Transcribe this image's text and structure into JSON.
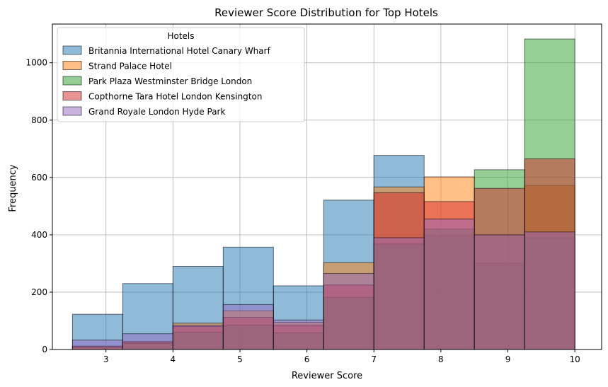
{
  "chart_data": {
    "type": "bar",
    "title": "Reviewer Score Distribution for Top Hotels",
    "xlabel": "Reviewer Score",
    "ylabel": "Frequency",
    "xlim": [
      2.2,
      10.4
    ],
    "ylim": [
      0,
      1135
    ],
    "xticks": [
      3,
      4,
      5,
      6,
      7,
      8,
      9,
      10
    ],
    "yticks": [
      0,
      200,
      400,
      600,
      800,
      1000
    ],
    "grid": true,
    "legend": {
      "title": "Hotels",
      "position": "top-left"
    },
    "bin_edges": [
      2.5,
      3.25,
      4.0,
      4.75,
      5.5,
      6.25,
      7.0,
      7.75,
      8.5,
      9.25,
      10.0
    ],
    "series": [
      {
        "name": "Britannia International Hotel Canary Wharf",
        "color": "#1f77b4",
        "values": [
          123,
          230,
          290,
          357,
          222,
          521,
          677,
          398,
          302,
          390
        ]
      },
      {
        "name": "Strand Palace Hotel",
        "color": "#ff7f0e",
        "values": [
          12,
          28,
          92,
          135,
          95,
          303,
          567,
          602,
          398,
          572
        ]
      },
      {
        "name": "Park Plaza Westminster Bridge London",
        "color": "#2ca02c",
        "values": [
          8,
          22,
          60,
          85,
          58,
          182,
          368,
          420,
          627,
          1083
        ]
      },
      {
        "name": "Copthorne Tara Hotel London Kensington",
        "color": "#d62728",
        "values": [
          10,
          25,
          80,
          112,
          85,
          225,
          547,
          516,
          562,
          665
        ]
      },
      {
        "name": "Grand Royale London Hyde Park",
        "color": "#9467bd",
        "values": [
          33,
          55,
          85,
          157,
          103,
          265,
          390,
          455,
          400,
          410
        ]
      }
    ]
  }
}
